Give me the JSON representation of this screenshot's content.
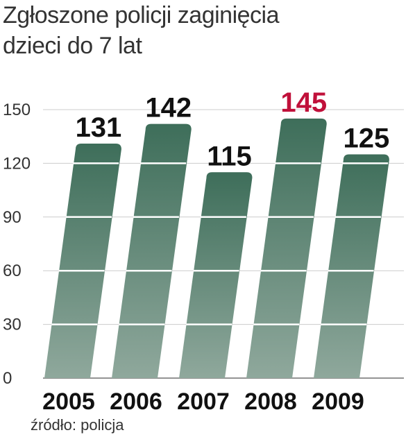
{
  "chart_data": {
    "type": "bar",
    "title_lines": [
      "Zgłoszone policji zaginięcia",
      "dzieci do 7 lat"
    ],
    "categories": [
      "2005",
      "2006",
      "2007",
      "2008",
      "2009"
    ],
    "values": [
      131,
      142,
      115,
      145,
      125
    ],
    "value_labels": [
      "131",
      "142",
      "115",
      "145",
      "125"
    ],
    "highlight_index": 3,
    "yticks": [
      "0",
      "30",
      "60",
      "90",
      "120",
      "150"
    ],
    "ylim": [
      0,
      150
    ],
    "grid": true,
    "xlabel": "",
    "ylabel": "",
    "source": "źródło: policja",
    "colors": {
      "bar_top": "#3e6e5a",
      "bar_bottom": "#8fa89c",
      "label": "#111111",
      "highlight": "#c0103a",
      "grid": "#cccccc",
      "axis_text": "#333333"
    }
  }
}
